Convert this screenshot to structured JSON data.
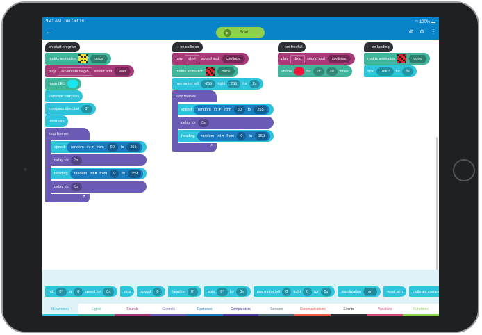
{
  "status": {
    "time": "9:41 AM",
    "date": "Tue Oct 18",
    "battery": "100%"
  },
  "toolbar": {
    "start_label": "Start"
  },
  "colors": {
    "motion": "#2ec5dc",
    "light": "#3fb59c",
    "sound": "#a83a7a",
    "control": "#6b5bb5",
    "operator": "#1a7bbf",
    "toolbar": "#0a84c8"
  },
  "stacks": [
    {
      "hat": {
        "icon": "",
        "label": "on start program"
      },
      "blocks": [
        {
          "kind": "light",
          "parts": [
            {
              "t": "text",
              "v": "matrix animation"
            },
            {
              "t": "matrix",
              "v": "smiley"
            },
            {
              "t": "hex",
              "v": "once"
            }
          ]
        },
        {
          "kind": "sound",
          "parts": [
            {
              "t": "text",
              "v": "play"
            },
            {
              "t": "box",
              "v": "adventure begin"
            },
            {
              "t": "text",
              "v": "sound and"
            },
            {
              "t": "hex",
              "v": "wait"
            }
          ]
        },
        {
          "kind": "light",
          "parts": [
            {
              "t": "text",
              "v": "main LED"
            },
            {
              "t": "color",
              "v": "#19e6f0"
            }
          ]
        },
        {
          "kind": "motion",
          "parts": [
            {
              "t": "text",
              "v": "calibrate compass"
            }
          ]
        },
        {
          "kind": "motion",
          "parts": [
            {
              "t": "text",
              "v": "compass direction"
            },
            {
              "t": "pill",
              "v": "0°"
            }
          ]
        },
        {
          "kind": "motion",
          "parts": [
            {
              "t": "text",
              "v": "reset aim"
            }
          ]
        },
        {
          "kind": "loop",
          "label": "loop forever",
          "children": [
            {
              "kind": "motion",
              "parts": [
                {
                  "t": "text",
                  "v": "speed"
                },
                {
                  "t": "nest",
                  "parts": [
                    {
                      "t": "text",
                      "v": "random"
                    },
                    {
                      "t": "text",
                      "v": "int ▾"
                    },
                    {
                      "t": "text",
                      "v": "from"
                    },
                    {
                      "t": "pill",
                      "v": "50"
                    },
                    {
                      "t": "text",
                      "v": "to"
                    },
                    {
                      "t": "pill",
                      "v": "255"
                    }
                  ]
                }
              ]
            },
            {
              "kind": "control",
              "parts": [
                {
                  "t": "text",
                  "v": "delay for"
                },
                {
                  "t": "pill",
                  "v": "3s"
                }
              ]
            },
            {
              "kind": "motion",
              "parts": [
                {
                  "t": "text",
                  "v": "heading"
                },
                {
                  "t": "nest",
                  "parts": [
                    {
                      "t": "text",
                      "v": "random"
                    },
                    {
                      "t": "text",
                      "v": "int ▾"
                    },
                    {
                      "t": "text",
                      "v": "from"
                    },
                    {
                      "t": "pill",
                      "v": "0"
                    },
                    {
                      "t": "text",
                      "v": "to"
                    },
                    {
                      "t": "pill",
                      "v": "359"
                    }
                  ]
                }
              ]
            },
            {
              "kind": "control",
              "parts": [
                {
                  "t": "text",
                  "v": "delay for"
                },
                {
                  "t": "pill",
                  "v": "3s"
                }
              ]
            }
          ]
        }
      ]
    },
    {
      "hat": {
        "icon": "collision-icon",
        "label": "on collision"
      },
      "blocks": [
        {
          "kind": "sound",
          "parts": [
            {
              "t": "text",
              "v": "play"
            },
            {
              "t": "box",
              "v": "alert"
            },
            {
              "t": "text",
              "v": "sound and"
            },
            {
              "t": "hex",
              "v": "continue"
            }
          ]
        },
        {
          "kind": "light",
          "parts": [
            {
              "t": "text",
              "v": "matrix animation"
            },
            {
              "t": "matrix",
              "v": "red-pattern"
            },
            {
              "t": "hex",
              "v": "once"
            }
          ]
        },
        {
          "kind": "motion",
          "parts": [
            {
              "t": "text",
              "v": "raw motor left"
            },
            {
              "t": "pill",
              "v": "-255"
            },
            {
              "t": "text",
              "v": "right"
            },
            {
              "t": "pill",
              "v": "255"
            },
            {
              "t": "text",
              "v": "for"
            },
            {
              "t": "pill",
              "v": "2s"
            }
          ]
        },
        {
          "kind": "loop",
          "label": "loop forever",
          "children": [
            {
              "kind": "motion",
              "parts": [
                {
                  "t": "text",
                  "v": "speed"
                },
                {
                  "t": "nest",
                  "parts": [
                    {
                      "t": "text",
                      "v": "random"
                    },
                    {
                      "t": "text",
                      "v": "int ▾"
                    },
                    {
                      "t": "text",
                      "v": "from"
                    },
                    {
                      "t": "pill",
                      "v": "50"
                    },
                    {
                      "t": "text",
                      "v": "to"
                    },
                    {
                      "t": "pill",
                      "v": "255"
                    }
                  ]
                }
              ]
            },
            {
              "kind": "control",
              "parts": [
                {
                  "t": "text",
                  "v": "delay for"
                },
                {
                  "t": "pill",
                  "v": "3s"
                }
              ]
            },
            {
              "kind": "motion",
              "parts": [
                {
                  "t": "text",
                  "v": "heading"
                },
                {
                  "t": "nest",
                  "parts": [
                    {
                      "t": "text",
                      "v": "random"
                    },
                    {
                      "t": "text",
                      "v": "int ▾"
                    },
                    {
                      "t": "text",
                      "v": "from"
                    },
                    {
                      "t": "pill",
                      "v": "0"
                    },
                    {
                      "t": "text",
                      "v": "to"
                    },
                    {
                      "t": "pill",
                      "v": "359"
                    }
                  ]
                }
              ]
            }
          ]
        }
      ]
    },
    {
      "hat": {
        "icon": "freefall-icon",
        "label": "on freefall"
      },
      "blocks": [
        {
          "kind": "sound",
          "parts": [
            {
              "t": "text",
              "v": "play"
            },
            {
              "t": "box",
              "v": "drop"
            },
            {
              "t": "text",
              "v": "sound and"
            },
            {
              "t": "hex",
              "v": "continue"
            }
          ]
        },
        {
          "kind": "light",
          "parts": [
            {
              "t": "text",
              "v": "strobe"
            },
            {
              "t": "color",
              "v": "#f0143c"
            },
            {
              "t": "text",
              "v": "for"
            },
            {
              "t": "pill",
              "v": "2s"
            },
            {
              "t": "pill",
              "v": "20"
            },
            {
              "t": "text",
              "v": "times"
            }
          ]
        }
      ]
    },
    {
      "hat": {
        "icon": "landing-icon",
        "label": "on landing"
      },
      "blocks": [
        {
          "kind": "light",
          "parts": [
            {
              "t": "text",
              "v": "matrix animation"
            },
            {
              "t": "matrix",
              "v": "red-pattern"
            },
            {
              "t": "hex",
              "v": "once"
            }
          ]
        },
        {
          "kind": "motion",
          "parts": [
            {
              "t": "text",
              "v": "spin"
            },
            {
              "t": "pill",
              "v": "1080°"
            },
            {
              "t": "text",
              "v": "for"
            },
            {
              "t": "pill",
              "v": "3s"
            }
          ]
        }
      ]
    }
  ],
  "palette": [
    {
      "kind": "motion",
      "parts": [
        {
          "t": "text",
          "v": "roll"
        },
        {
          "t": "pill",
          "v": "0°"
        },
        {
          "t": "text",
          "v": "at"
        },
        {
          "t": "pill",
          "v": "0"
        },
        {
          "t": "text",
          "v": "speed for"
        },
        {
          "t": "pill",
          "v": "0s"
        }
      ]
    },
    {
      "kind": "motion",
      "parts": [
        {
          "t": "text",
          "v": "stop"
        }
      ]
    },
    {
      "kind": "motion",
      "parts": [
        {
          "t": "text",
          "v": "speed"
        },
        {
          "t": "pill",
          "v": "0"
        }
      ]
    },
    {
      "kind": "motion",
      "parts": [
        {
          "t": "text",
          "v": "heading"
        },
        {
          "t": "pill",
          "v": "0°"
        }
      ]
    },
    {
      "kind": "motion",
      "parts": [
        {
          "t": "text",
          "v": "spin"
        },
        {
          "t": "pill",
          "v": "0°"
        },
        {
          "t": "text",
          "v": "for"
        },
        {
          "t": "pill",
          "v": "0s"
        }
      ]
    },
    {
      "kind": "motion",
      "parts": [
        {
          "t": "text",
          "v": "raw motor left"
        },
        {
          "t": "pill",
          "v": "0"
        },
        {
          "t": "text",
          "v": "right"
        },
        {
          "t": "pill",
          "v": "0"
        },
        {
          "t": "text",
          "v": "for"
        },
        {
          "t": "pill",
          "v": "0s"
        }
      ]
    },
    {
      "kind": "motion",
      "parts": [
        {
          "t": "text",
          "v": "stabilization"
        },
        {
          "t": "hex",
          "v": "on"
        }
      ]
    },
    {
      "kind": "motion",
      "parts": [
        {
          "t": "text",
          "v": "reset aim"
        }
      ]
    },
    {
      "kind": "motion",
      "parts": [
        {
          "t": "text",
          "v": "calibrate compass"
        }
      ]
    },
    {
      "kind": "motion",
      "parts": [
        {
          "t": "text",
          "v": "compass"
        }
      ]
    }
  ],
  "tabs": [
    {
      "label": "Movements",
      "color": "#2ec5dc",
      "active": true
    },
    {
      "label": "Lights",
      "color": "#3fb59c"
    },
    {
      "label": "Sounds",
      "color": "#a83a7a"
    },
    {
      "label": "Controls",
      "color": "#6b5bb5"
    },
    {
      "label": "Operators",
      "color": "#1a7bbf"
    },
    {
      "label": "Comparators",
      "color": "#4a3a9a"
    },
    {
      "label": "Sensors",
      "color": "#546e7a"
    },
    {
      "label": "Communications",
      "color": "#f05a4a"
    },
    {
      "label": "Events",
      "color": "#2b2f33"
    },
    {
      "label": "Variables",
      "color": "#d6477a"
    },
    {
      "label": "Functions",
      "color": "#8ed14a"
    }
  ]
}
